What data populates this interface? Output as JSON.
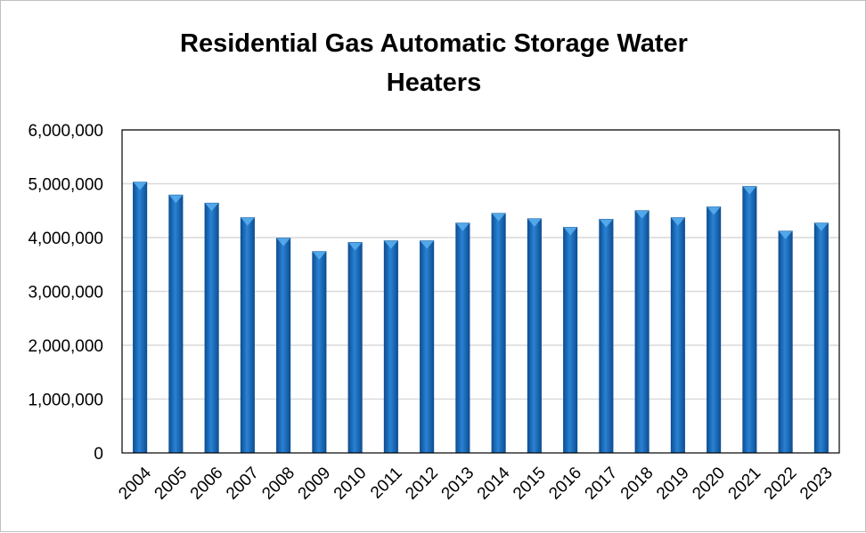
{
  "chart_data": {
    "type": "bar",
    "title_lines": [
      "Residential Gas Automatic Storage Water",
      "Heaters"
    ],
    "categories": [
      "2004",
      "2005",
      "2006",
      "2007",
      "2008",
      "2009",
      "2010",
      "2011",
      "2012",
      "2013",
      "2014",
      "2015",
      "2016",
      "2017",
      "2018",
      "2019",
      "2020",
      "2021",
      "2022",
      "2023"
    ],
    "series": [
      {
        "values": [
          5030000,
          4790000,
          4640000,
          4370000,
          3990000,
          3740000,
          3910000,
          3940000,
          3940000,
          4270000,
          4450000,
          4350000,
          4190000,
          4340000,
          4500000,
          4370000,
          4570000,
          4950000,
          4120000,
          4270000
        ]
      }
    ],
    "ylim": [
      0,
      6000000
    ],
    "yticks": [
      0,
      1000000,
      2000000,
      3000000,
      4000000,
      5000000,
      6000000
    ],
    "ytick_labels": [
      "0",
      "1,000,000",
      "2,000,000",
      "3,000,000",
      "4,000,000",
      "5,000,000",
      "6,000,000"
    ],
    "xlabel": "",
    "ylabel": "",
    "grid": true,
    "legend": false,
    "colors": {
      "bar": "#1f6fc1",
      "bar_dark": "#0d4f94",
      "bar_top": "#5bb0ee",
      "grid": "#d9d9d9",
      "axis": "#000000"
    }
  }
}
